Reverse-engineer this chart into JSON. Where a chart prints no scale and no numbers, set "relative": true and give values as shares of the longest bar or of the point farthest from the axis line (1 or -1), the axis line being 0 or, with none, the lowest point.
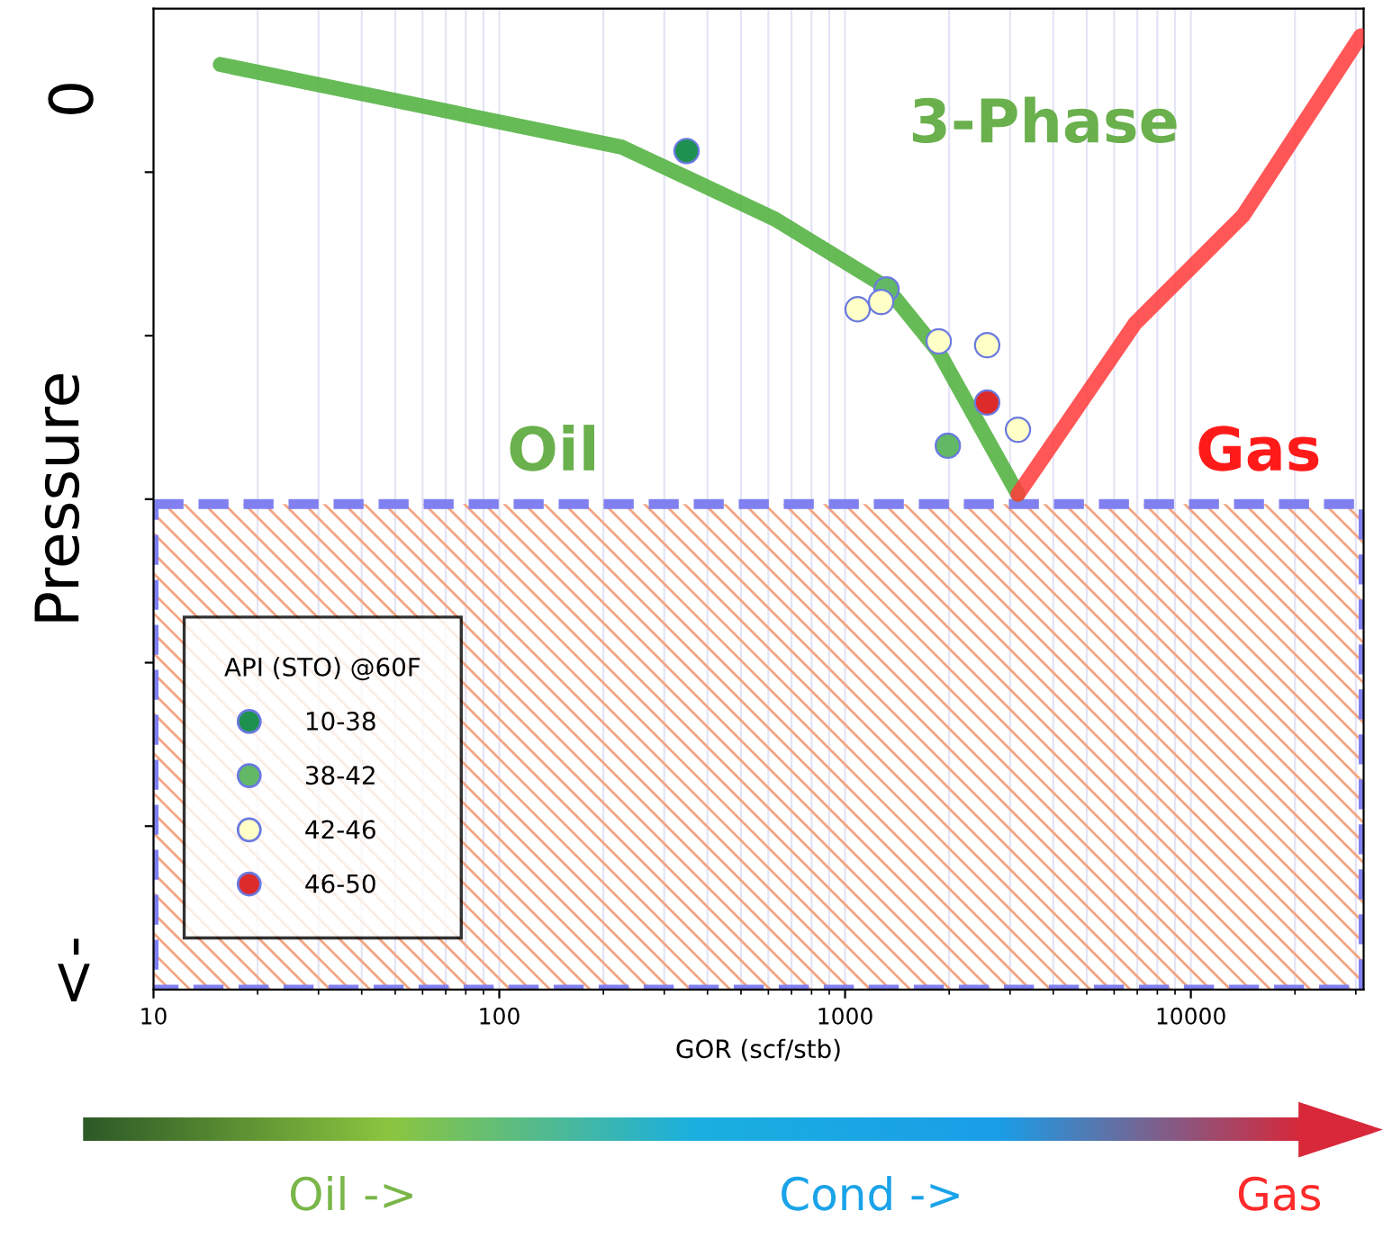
{
  "chart_data": {
    "type": "scatter",
    "relative": true,
    "ylabel": "Pressure",
    "xlabel": "GOR (scf/stb)",
    "log": "x",
    "xlim": [
      10,
      31600
    ],
    "xticks": [
      10,
      100,
      1000,
      10000
    ],
    "grid": "x",
    "legend": "bottom left",
    "legend_title": "API (STO) @60F",
    "series": [
      {
        "type": "line",
        "marker": "none",
        "color": "#4caf3a",
        "x": [
          15.6,
          226,
          626,
          1318,
          1866,
          3162
        ],
        "values": [
          -0.115,
          -0.285,
          -0.433,
          -0.574,
          -0.707,
          -1
        ]
      },
      {
        "type": "line",
        "marker": "none",
        "color": "#ff3a3a",
        "x": [
          3162,
          6900,
          14160,
          31000
        ],
        "values": [
          -1,
          -0.648,
          -0.426,
          -0.056
        ]
      },
      {
        "name": "10-38",
        "marker": "circle",
        "color": "#1e9150",
        "x": [
          348
        ],
        "values": [
          -0.293
        ]
      },
      {
        "name": "38-42",
        "marker": "circle",
        "color": "#62b865",
        "x": [
          1318,
          1982
        ],
        "values": [
          -0.578,
          -0.9
        ]
      },
      {
        "name": "42-46",
        "marker": "circle",
        "color": "#ffffc8",
        "x": [
          1087,
          1271,
          1866,
          2576,
          3162
        ],
        "values": [
          -0.619,
          -0.604,
          -0.685,
          -0.693,
          -0.867
        ]
      },
      {
        "name": "46-50",
        "marker": "circle",
        "color": "#dd2a2a",
        "x": [
          2576
        ],
        "values": [
          -0.811
        ]
      }
    ],
    "bands": [
      {
        "axis": "y",
        "from": -1.02,
        "to": -2.02,
        "color": "#f4a582"
      }
    ],
    "annotations": [
      "0",
      "<-",
      "Oil",
      "3-Phase",
      "Gas",
      "Oil ->",
      "Cond ->",
      "Gas"
    ]
  }
}
